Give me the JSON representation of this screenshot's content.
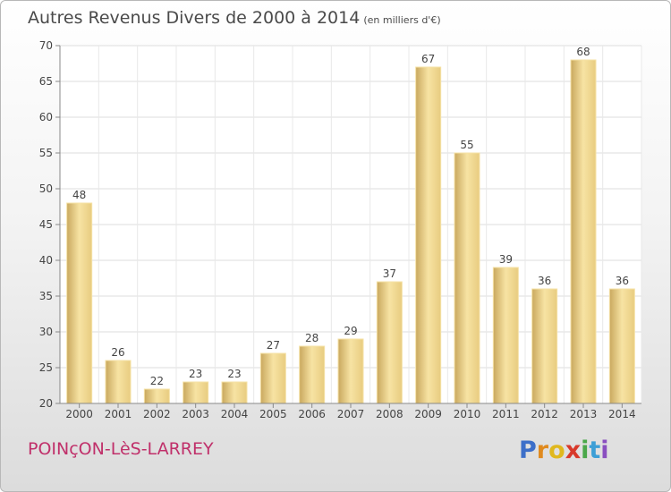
{
  "header": {
    "title": "Autres Revenus Divers de 2000 à 2014",
    "subtitle": "(en milliers d'€)"
  },
  "footer": {
    "commune": "POINçON-LèS-LARREY",
    "logo_letters": [
      "P",
      "r",
      "o",
      "x",
      "i",
      "t",
      "i"
    ],
    "logo_colors": [
      "#3d6fc9",
      "#e08a1e",
      "#e0b81e",
      "#d8392b",
      "#4aa84a",
      "#3d9fd6",
      "#8a4fc0"
    ]
  },
  "chart_data": {
    "type": "bar",
    "categories": [
      "2000",
      "2001",
      "2002",
      "2003",
      "2004",
      "2005",
      "2006",
      "2007",
      "2008",
      "2009",
      "2010",
      "2011",
      "2012",
      "2013",
      "2014"
    ],
    "values": [
      48,
      26,
      22,
      23,
      23,
      27,
      28,
      29,
      37,
      67,
      55,
      39,
      36,
      68,
      36
    ],
    "data_labels": [
      "48",
      "26",
      "22",
      "23",
      "23",
      "27",
      "28",
      "29",
      "37",
      "67",
      "55",
      "39",
      "36",
      "68",
      "36"
    ],
    "title": "Autres Revenus Divers de 2000 à 2014",
    "subtitle": "(en milliers d'€)",
    "xlabel": "",
    "ylabel": "",
    "ylim": [
      20,
      70
    ],
    "yticks": [
      20,
      25,
      30,
      35,
      40,
      45,
      50,
      55,
      60,
      65,
      70
    ],
    "ytick_labels": [
      "20",
      "25",
      "30",
      "35",
      "40",
      "45",
      "50",
      "55",
      "60",
      "65",
      "70"
    ],
    "grid": true,
    "bar_color": "#e8cc80",
    "bar_color_light": "#f7e3a3",
    "bar_color_dark": "#c9a85e"
  }
}
